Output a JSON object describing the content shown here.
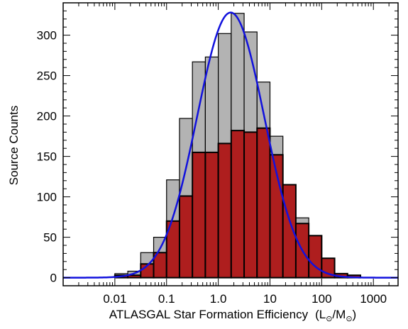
{
  "chart_data": {
    "type": "bar",
    "xlabel": "ATLASGAL Star Formation Efficiency",
    "xlabel_unit": {
      "open": "(L",
      "sun1": "⊙",
      "mid": "/M",
      "sun2": "⊙",
      "close": ")"
    },
    "ylabel": "Source Counts",
    "x_scale": "log",
    "xlim": [
      0.001,
      3000
    ],
    "ylim": [
      -10,
      340
    ],
    "x_ticks": [
      {
        "value": 0.01,
        "label": "0.01"
      },
      {
        "value": 0.1,
        "label": "0.1"
      },
      {
        "value": 1,
        "label": "1.0"
      },
      {
        "value": 10,
        "label": "10"
      },
      {
        "value": 100,
        "label": "100"
      },
      {
        "value": 1000,
        "label": "1000"
      }
    ],
    "y_ticks": [
      {
        "value": 0,
        "label": "0"
      },
      {
        "value": 50,
        "label": "50"
      },
      {
        "value": 100,
        "label": "100"
      },
      {
        "value": 150,
        "label": "150"
      },
      {
        "value": 200,
        "label": "200"
      },
      {
        "value": 250,
        "label": "250"
      },
      {
        "value": 300,
        "label": "300"
      }
    ],
    "bin_edges_log10": [
      -3.0,
      -2.75,
      -2.5,
      -2.25,
      -2.0,
      -1.75,
      -1.5,
      -1.25,
      -1.0,
      -0.75,
      -0.5,
      -0.25,
      0.0,
      0.25,
      0.5,
      0.75,
      1.0,
      1.25,
      1.5,
      1.75,
      2.0,
      2.25,
      2.5,
      2.75,
      3.0
    ],
    "series": [
      {
        "color": "#b3b3b3",
        "values": [
          0,
          0,
          0,
          0,
          5,
          8,
          31,
          50,
          121,
          197,
          267,
          273,
          302,
          327,
          304,
          242,
          175,
          110,
          74,
          42,
          19,
          5,
          3,
          0
        ]
      },
      {
        "color": "#ae1e1e",
        "values": [
          0,
          0,
          0,
          0,
          3,
          3,
          17,
          31,
          70,
          101,
          155,
          155,
          166,
          182,
          180,
          185,
          152,
          115,
          67,
          52,
          24,
          5,
          3,
          0
        ]
      }
    ],
    "fit_curve": {
      "color": "#1111dd",
      "type": "gaussian_in_log10",
      "peak": 328,
      "center_log10": 0.24,
      "sigma_log10": 0.65
    }
  }
}
